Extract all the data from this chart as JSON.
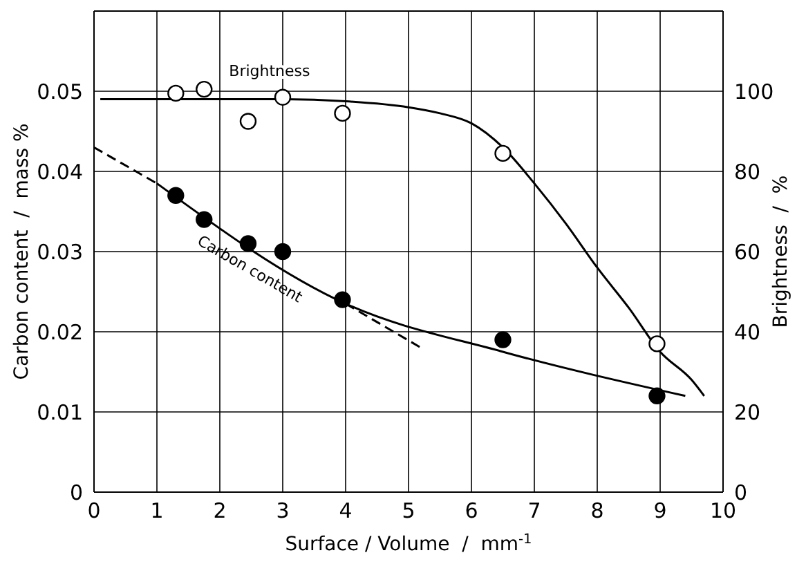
{
  "chart_data": {
    "type": "scatter",
    "xlabel": "Surface / Volume  /  mm$^{-1}$",
    "ylabel": "Carbon content  /  mass %",
    "y2label": "Brightness  /  %",
    "xlim": [
      0,
      10
    ],
    "xticks": [
      0,
      1,
      2,
      3,
      4,
      5,
      6,
      7,
      8,
      9,
      10
    ],
    "ylim": [
      0,
      0.06
    ],
    "yticks": [
      0,
      0.01,
      0.02,
      0.03,
      0.04,
      0.05
    ],
    "y2lim": [
      0,
      120
    ],
    "y2ticks": [
      0,
      20,
      40,
      60,
      80,
      100
    ],
    "grid": true,
    "legend": false,
    "marker": "circle",
    "series": [
      {
        "name": "Brightness",
        "axis": "y2",
        "color": "#ffffff",
        "x": [
          1.3,
          1.75,
          2.45,
          3.0,
          3.95,
          6.5,
          8.95
        ],
        "values": [
          99.5,
          100.5,
          92.5,
          98.5,
          94.5,
          84.5,
          37
        ]
      },
      {
        "name": "Carbon content",
        "color": "#000000",
        "x": [
          1.3,
          1.75,
          2.45,
          3.0,
          3.95,
          6.5,
          8.95
        ],
        "values": [
          0.037,
          0.034,
          0.031,
          0.03,
          0.024,
          0.019,
          0.012
        ]
      },
      {
        "type": "line",
        "axis": "y2",
        "color": "#000000",
        "marker": "none",
        "line_style": "solid",
        "x": [
          0.1,
          2,
          3,
          4,
          5,
          5.5,
          6,
          6.5,
          7,
          7.5,
          8,
          8.5,
          9,
          9.5,
          9.7
        ],
        "values": [
          98,
          98,
          98,
          97.5,
          96,
          94.5,
          92,
          86,
          77,
          67,
          56,
          46,
          35,
          28,
          24
        ]
      },
      {
        "type": "line",
        "color": "#000000",
        "marker": "none",
        "line_style": "solid",
        "x": [
          1,
          4,
          6.5,
          9.4
        ],
        "values": [
          0.0385,
          0.0235,
          0.0175,
          0.012
        ]
      },
      {
        "type": "line",
        "color": "#000000",
        "marker": "none",
        "line_style": "dashed",
        "x": [
          0,
          1
        ],
        "values": [
          0.043,
          0.0385
        ]
      },
      {
        "type": "line",
        "color": "#000000",
        "marker": "none",
        "line_style": "dashed",
        "x": [
          4,
          5.2
        ],
        "values": [
          0.0235,
          0.018
        ]
      }
    ]
  }
}
